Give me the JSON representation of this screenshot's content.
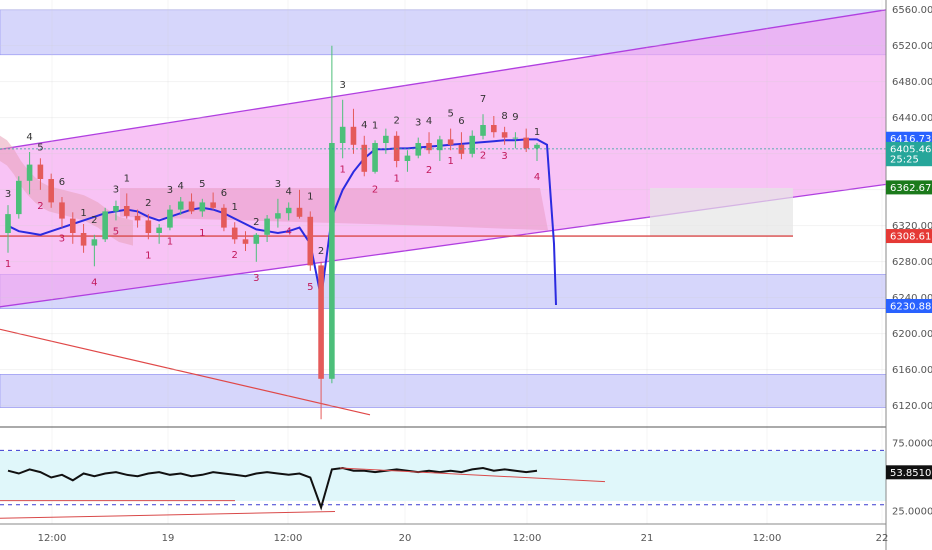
{
  "chart_data": [
    {
      "type": "candlestick",
      "title": "",
      "y_axis_ticks": [
        "6560.00",
        "6520.00",
        "6480.00",
        "6440.00",
        "6400.00",
        "6360.00",
        "6320.00",
        "6280.00",
        "6240.00",
        "6200.00",
        "6160.00",
        "6120.00"
      ],
      "ylim": [
        6102,
        6562
      ],
      "x_axis_ticks": [
        "12:00",
        "19",
        "12:00",
        "20",
        "12:00",
        "21",
        "12:00",
        "22"
      ],
      "price_badges": [
        {
          "value": "6416.73",
          "color": "#2962ff"
        },
        {
          "value": "6405.46",
          "color": "#26a69a"
        },
        {
          "value": "25:25",
          "color": "#26a69a"
        },
        {
          "value": "6362.67",
          "color": "#1b7a1b"
        },
        {
          "value": "6308.61",
          "color": "#e53935"
        },
        {
          "value": "6230.88",
          "color": "#2962ff"
        }
      ],
      "horizontal_levels": [
        6416.73,
        6405.46,
        6362.67,
        6308.61,
        6230.88
      ],
      "zones": [
        {
          "from": 6510,
          "to": 6560,
          "color": "#d6d6fb"
        },
        {
          "from": 6228,
          "to": 6266,
          "color": "#d6d6fb"
        },
        {
          "from": 6118,
          "to": 6155,
          "color": "#d6d6fb"
        }
      ],
      "channel": {
        "upper": [
          [
            0,
            6405
          ],
          [
            1,
            6560
          ]
        ],
        "lower": [
          [
            0,
            6230
          ],
          [
            1,
            6366
          ]
        ]
      },
      "candles": [
        [
          6312,
          6343,
          6290,
          6333
        ],
        [
          6333,
          6375,
          6328,
          6370
        ],
        [
          6370,
          6402,
          6355,
          6388
        ],
        [
          6388,
          6395,
          6360,
          6372
        ],
        [
          6372,
          6378,
          6340,
          6346
        ],
        [
          6346,
          6352,
          6318,
          6328
        ],
        [
          6328,
          6335,
          6300,
          6312
        ],
        [
          6312,
          6322,
          6290,
          6298
        ],
        [
          6298,
          6310,
          6275,
          6305
        ],
        [
          6305,
          6340,
          6302,
          6336
        ],
        [
          6336,
          6348,
          6326,
          6342
        ],
        [
          6342,
          6356,
          6328,
          6331
        ],
        [
          6331,
          6338,
          6318,
          6326
        ],
        [
          6326,
          6333,
          6305,
          6312
        ],
        [
          6312,
          6322,
          6300,
          6318
        ],
        [
          6318,
          6343,
          6315,
          6338
        ],
        [
          6338,
          6352,
          6332,
          6347
        ],
        [
          6347,
          6356,
          6333,
          6336
        ],
        [
          6336,
          6350,
          6330,
          6346
        ],
        [
          6346,
          6357,
          6338,
          6340
        ],
        [
          6340,
          6344,
          6314,
          6318
        ],
        [
          6318,
          6324,
          6300,
          6305
        ],
        [
          6305,
          6314,
          6292,
          6300
        ],
        [
          6300,
          6312,
          6280,
          6310
        ],
        [
          6310,
          6332,
          6302,
          6328
        ],
        [
          6328,
          6350,
          6318,
          6334
        ],
        [
          6334,
          6346,
          6326,
          6340
        ],
        [
          6340,
          6360,
          6328,
          6330
        ],
        [
          6330,
          6336,
          6270,
          6276
        ],
        [
          6276,
          6280,
          6105,
          6150
        ],
        [
          6150,
          6520,
          6145,
          6412
        ],
        [
          6412,
          6460,
          6395,
          6430
        ],
        [
          6430,
          6450,
          6400,
          6410
        ],
        [
          6410,
          6420,
          6375,
          6380
        ],
        [
          6380,
          6415,
          6378,
          6412
        ],
        [
          6412,
          6428,
          6400,
          6420
        ],
        [
          6420,
          6425,
          6385,
          6392
        ],
        [
          6392,
          6404,
          6380,
          6398
        ],
        [
          6398,
          6418,
          6395,
          6412
        ],
        [
          6412,
          6424,
          6400,
          6404
        ],
        [
          6404,
          6420,
          6392,
          6416
        ],
        [
          6416,
          6428,
          6404,
          6410
        ],
        [
          6410,
          6424,
          6394,
          6400
        ],
        [
          6400,
          6426,
          6396,
          6420
        ],
        [
          6420,
          6444,
          6416,
          6432
        ],
        [
          6432,
          6442,
          6418,
          6424
        ],
        [
          6424,
          6430,
          6410,
          6418
        ],
        [
          6418,
          6424,
          6406,
          6418
        ],
        [
          6418,
          6428,
          6402,
          6406
        ],
        [
          6406,
          6412,
          6392,
          6410
        ]
      ],
      "td_labels_above": [
        "3",
        "4",
        "5",
        "6",
        "1",
        "2",
        "3",
        "1",
        "2",
        "3",
        "4",
        "5",
        "6",
        "1",
        "2",
        "3",
        "4",
        "1",
        "2",
        "3",
        "4",
        "1",
        "2",
        "3",
        "4",
        "5",
        "6",
        "7",
        "8",
        "9",
        "1"
      ],
      "td_labels_below": [
        "1",
        "2",
        "3",
        "4",
        "5",
        "1",
        "1",
        "1",
        "2",
        "3",
        "4",
        "5",
        "1",
        "2",
        "1",
        "2",
        "1",
        "2",
        "3",
        "4"
      ]
    },
    {
      "type": "line",
      "y_axis_ticks": [
        "75.0000",
        "25.0000"
      ],
      "ylim": [
        18,
        85
      ],
      "current_value": "53.8510",
      "levels": [
        70,
        30
      ],
      "values": [
        55,
        53,
        56,
        54,
        50,
        52,
        48,
        53,
        51,
        53,
        54,
        52,
        51,
        53,
        54,
        52,
        53,
        51,
        52,
        54,
        53,
        52,
        51,
        53,
        54,
        53,
        52,
        53,
        50,
        28,
        56,
        57,
        55,
        55,
        54,
        55,
        56,
        55,
        54,
        55,
        54,
        55,
        54,
        56,
        57,
        55,
        56,
        55,
        54,
        55
      ]
    }
  ]
}
